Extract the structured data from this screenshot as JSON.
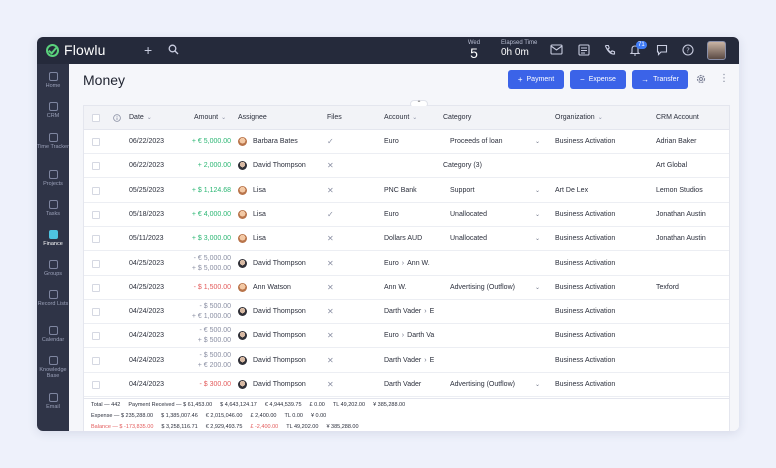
{
  "app": {
    "name": "Flowlu"
  },
  "topbar": {
    "week_label": "Wed",
    "week_value": "5",
    "elapsed_label": "Elapsed Time",
    "elapsed_value": "0h 0m",
    "notifications_count": "71",
    "icons": [
      "plus-icon",
      "search-icon",
      "mail-icon",
      "notes-icon",
      "phone-icon",
      "bell-icon",
      "chat-icon",
      "help-icon"
    ]
  },
  "sidebar": {
    "items": [
      {
        "label": "Home",
        "icon": "home-icon"
      },
      {
        "label": "CRM",
        "icon": "crm-icon"
      },
      {
        "label": "Time Tracker",
        "icon": "clock-icon"
      },
      {
        "label": "Projects",
        "icon": "projects-icon"
      },
      {
        "label": "Tasks",
        "icon": "tasks-icon"
      },
      {
        "label": "Finance",
        "icon": "finance-icon"
      },
      {
        "label": "Groups",
        "icon": "groups-icon"
      },
      {
        "label": "Record Lists",
        "icon": "list-icon"
      },
      {
        "label": "Calendar",
        "icon": "calendar-icon"
      },
      {
        "label": "Knowledge Base",
        "icon": "book-icon"
      },
      {
        "label": "Email",
        "icon": "email-icon"
      }
    ]
  },
  "page": {
    "title": "Money",
    "buttons": {
      "payment": "Payment",
      "expense": "Expense",
      "transfer": "Transfer"
    }
  },
  "table": {
    "columns": {
      "date": "Date",
      "amount": "Amount",
      "assignee": "Assignee",
      "files": "Files",
      "account": "Account",
      "category": "Category",
      "organization": "Organization",
      "crm_account": "CRM Account"
    },
    "rows": [
      {
        "date": "06/22/2023",
        "amount1": "+ € 5,000.00",
        "amount2": "",
        "kind": "pos",
        "assignee": "Barbara Bates",
        "gender": "f",
        "files": "check",
        "account": "Euro",
        "category": "Proceeds of loan",
        "cat_caret": true,
        "organization": "Business Activation",
        "crm": "Adrian Baker"
      },
      {
        "date": "06/22/2023",
        "amount1": "+ 2,000.00",
        "amount2": "",
        "kind": "pos",
        "assignee": "David Thompson",
        "gender": "m",
        "files": "cross",
        "account": "",
        "category": "Category (3)",
        "cat_caret": false,
        "organization": "",
        "crm": "Art Global"
      },
      {
        "date": "05/25/2023",
        "amount1": "+ $ 1,124.68",
        "amount2": "",
        "kind": "pos",
        "assignee": "Lisa",
        "gender": "f",
        "files": "cross",
        "account": "PNC Bank",
        "category": "Support",
        "cat_caret": true,
        "organization": "Art De Lex",
        "crm": "Lemon Studios"
      },
      {
        "date": "05/18/2023",
        "amount1": "+ € 4,000.00",
        "amount2": "",
        "kind": "pos",
        "assignee": "Lisa",
        "gender": "f",
        "files": "check",
        "account": "Euro",
        "category": "Unallocated",
        "cat_caret": true,
        "organization": "Business Activation",
        "crm": "Jonathan Austin"
      },
      {
        "date": "05/11/2023",
        "amount1": "+ $ 3,000.00",
        "amount2": "",
        "kind": "pos",
        "assignee": "Lisa",
        "gender": "f",
        "files": "cross",
        "account": "Dollars AUD",
        "category": "Unallocated",
        "cat_caret": true,
        "organization": "Business Activation",
        "crm": "Jonathan Austin"
      },
      {
        "date": "04/25/2023",
        "amount1": "- € 5,000.00",
        "amount2": "+ $ 5,000.00",
        "kind": "mix",
        "assignee": "David Thompson",
        "gender": "m",
        "files": "cross",
        "account": "Euro",
        "account2": "Ann W.",
        "category": "",
        "cat_caret": false,
        "organization": "Business Activation",
        "crm": ""
      },
      {
        "date": "04/25/2023",
        "amount1": "- $ 1,500.00",
        "amount2": "",
        "kind": "neg",
        "assignee": "Ann Watson",
        "gender": "f",
        "files": "cross",
        "account": "Ann W.",
        "category": "Advertising (Outflow)",
        "cat_caret": true,
        "organization": "Business Activation",
        "crm": "Texford"
      },
      {
        "date": "04/24/2023",
        "amount1": "- $ 500.00",
        "amount2": "+ € 1,000.00",
        "kind": "mix",
        "assignee": "David Thompson",
        "gender": "m",
        "files": "cross",
        "account": "Darth Vader",
        "account2": "E",
        "category": "",
        "cat_caret": false,
        "organization": "Business Activation",
        "crm": ""
      },
      {
        "date": "04/24/2023",
        "amount1": "- € 500.00",
        "amount2": "+ $ 500.00",
        "kind": "mix",
        "assignee": "David Thompson",
        "gender": "m",
        "files": "cross",
        "account": "Euro",
        "account2": "Darth Va",
        "category": "",
        "cat_caret": false,
        "organization": "Business Activation",
        "crm": ""
      },
      {
        "date": "04/24/2023",
        "amount1": "- $ 500.00",
        "amount2": "+ € 200.00",
        "kind": "mix",
        "assignee": "David Thompson",
        "gender": "m",
        "files": "cross",
        "account": "Darth Vader",
        "account2": "E",
        "category": "",
        "cat_caret": false,
        "organization": "Business Activation",
        "crm": ""
      },
      {
        "date": "04/24/2023",
        "amount1": "- $ 300.00",
        "amount2": "",
        "kind": "neg",
        "assignee": "David Thompson",
        "gender": "m",
        "files": "cross",
        "account": "Darth Vader",
        "category": "Advertising (Outflow)",
        "cat_caret": true,
        "organization": "Business Activation",
        "crm": ""
      }
    ]
  },
  "totals": {
    "line1": [
      "Total — 442",
      "Payment Received — $ 61,453.00",
      "$ 4,643,124.17",
      "€ 4,944,539.75",
      "£ 0.00",
      "TL 49,202.00",
      "¥ 385,288.00"
    ],
    "line2": [
      "Expense — $ 235,288.00",
      "$ 1,385,007.46",
      "€ 2,015,046.00",
      "£ 2,400.00",
      "TL 0.00",
      "¥ 0.00"
    ],
    "line3": [
      "Balance — $ -173,835.00",
      "$ 3,258,116.71",
      "€ 2,929,493.75",
      "£ -2,400.00",
      "TL 49,202.00",
      "¥ 385,288.00"
    ]
  }
}
